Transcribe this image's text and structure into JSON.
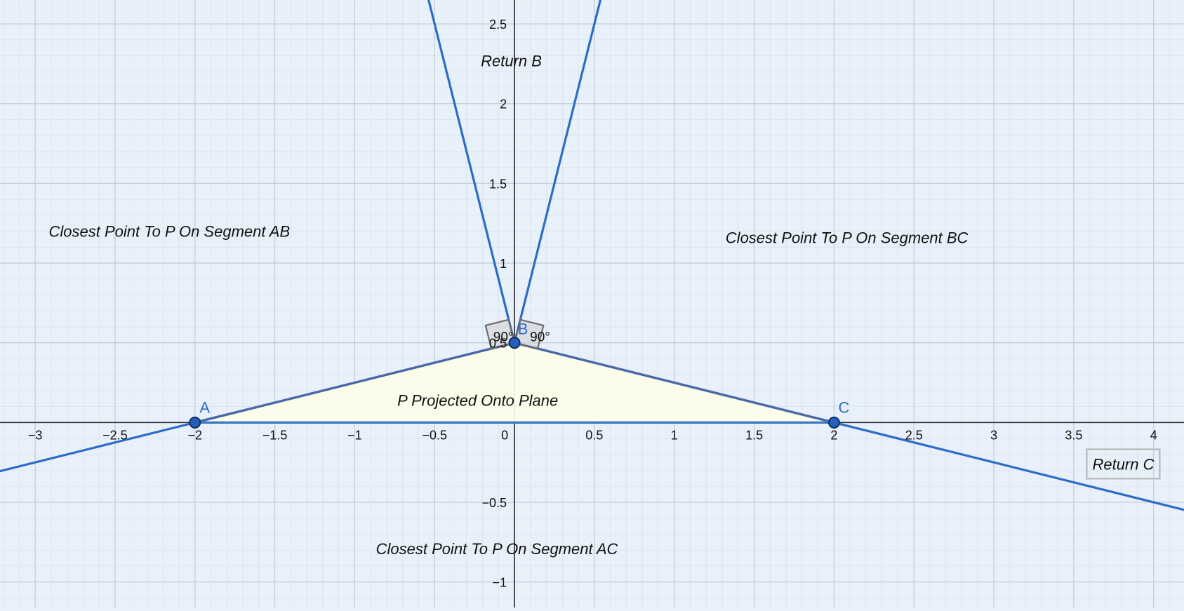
{
  "colors": {
    "background": "#e8f0fa",
    "grid_major": "#c3cddb",
    "grid_minor": "#d9e3ef",
    "axis": "#2a2a2a",
    "ray_blue": "#2f6bc6",
    "triangle_edge": "#4a68a6",
    "triangle_fill": "#fdfde8",
    "point_fill": "#2460b8",
    "point_label": "#2f6bc6",
    "angle_marker": "#6d6d6d",
    "text": "#111111"
  },
  "chart_data": {
    "type": "geometry-plot",
    "xlim": [
      -3.22,
      4.19
    ],
    "ylim": [
      -1.16,
      2.65
    ],
    "grid": true,
    "x_ticks": [
      {
        "value": -3,
        "label": "−3"
      },
      {
        "value": -2.5,
        "label": "−2.5"
      },
      {
        "value": -2,
        "label": "−2"
      },
      {
        "value": -1.5,
        "label": "−1.5"
      },
      {
        "value": -1,
        "label": "−1"
      },
      {
        "value": -0.5,
        "label": "−0.5"
      },
      {
        "value": 0,
        "label": "0"
      },
      {
        "value": 0.5,
        "label": "0.5"
      },
      {
        "value": 1,
        "label": "1"
      },
      {
        "value": 1.5,
        "label": "1.5"
      },
      {
        "value": 2,
        "label": "2"
      },
      {
        "value": 2.5,
        "label": "2.5"
      },
      {
        "value": 3,
        "label": "3"
      },
      {
        "value": 3.5,
        "label": "3.5"
      },
      {
        "value": 4,
        "label": "4"
      }
    ],
    "y_ticks": [
      {
        "value": 2.5,
        "label": "2.5"
      },
      {
        "value": 2,
        "label": "2"
      },
      {
        "value": 1.5,
        "label": "1.5"
      },
      {
        "value": 1,
        "label": "1"
      },
      {
        "value": 0.5,
        "label": "0.5"
      },
      {
        "value": -0.5,
        "label": "−0.5"
      },
      {
        "value": -1,
        "label": "−1"
      }
    ],
    "points": [
      {
        "name": "A",
        "label": "A",
        "x": -2,
        "y": 0
      },
      {
        "name": "B",
        "label": "B",
        "x": 0,
        "y": 0.5
      },
      {
        "name": "C",
        "label": "C",
        "x": 2,
        "y": 0
      }
    ],
    "triangle": [
      "A",
      "B",
      "C"
    ],
    "rays": [
      {
        "name": "ray-from-a",
        "from": [
          -2,
          0
        ],
        "to": [
          -3.3,
          -0.325
        ]
      },
      {
        "name": "ray-from-c",
        "from": [
          2,
          0
        ],
        "to": [
          4.3,
          -0.575
        ]
      },
      {
        "name": "ray-from-b-left",
        "from": [
          0,
          0.5
        ],
        "to": [
          -0.54,
          2.66
        ]
      },
      {
        "name": "ray-from-b-right",
        "from": [
          0,
          0.5
        ],
        "to": [
          0.54,
          2.66
        ]
      }
    ],
    "angle_labels": [
      {
        "name": "angle-left",
        "text": "90°",
        "x": -0.07,
        "y": 0.51
      },
      {
        "name": "angle-right",
        "text": "90°",
        "x": 0.16,
        "y": 0.51
      }
    ],
    "region_labels": [
      {
        "name": "region-return-b",
        "text": "Return B",
        "x": -0.02,
        "y": 2.27,
        "anchor": "middle",
        "boxed": false
      },
      {
        "name": "region-closest-ab",
        "text": "Closest Point To P On Segment AB",
        "x": -2.16,
        "y": 1.2,
        "anchor": "middle",
        "boxed": false
      },
      {
        "name": "region-closest-bc",
        "text": "Closest Point To P On Segment BC",
        "x": 2.08,
        "y": 1.16,
        "anchor": "middle",
        "boxed": false
      },
      {
        "name": "region-projected",
        "text": "P Projected Onto Plane",
        "x": -0.23,
        "y": 0.14,
        "anchor": "middle",
        "boxed": false
      },
      {
        "name": "region-return-c",
        "text": "Return C",
        "x": 3.81,
        "y": -0.26,
        "anchor": "middle",
        "boxed": true
      },
      {
        "name": "region-closest-ac",
        "text": "Closest Point To P On Segment AC",
        "x": -0.11,
        "y": -0.79,
        "anchor": "middle",
        "boxed": false
      }
    ]
  }
}
